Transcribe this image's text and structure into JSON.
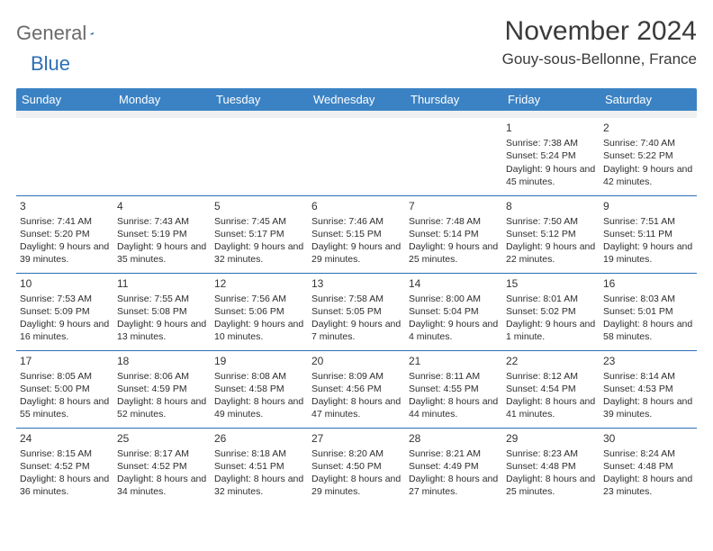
{
  "logo": {
    "word1": "General",
    "word2": "Blue"
  },
  "title": "November 2024",
  "location": "Gouy-sous-Bellonne, France",
  "colors": {
    "header_bg": "#3b82c4",
    "header_text": "#ffffff",
    "cell_border": "#2b6fb5",
    "spacer_bg": "#eef0f1",
    "text": "#2d2d2d",
    "logo_gray": "#6a6a6a",
    "logo_blue": "#2b6fb5"
  },
  "typography": {
    "title_fontsize": 30,
    "location_fontsize": 17,
    "weekday_fontsize": 13,
    "daynum_fontsize": 12,
    "body_fontsize": 10.5
  },
  "weekdays": [
    "Sunday",
    "Monday",
    "Tuesday",
    "Wednesday",
    "Thursday",
    "Friday",
    "Saturday"
  ],
  "weeks": [
    [
      null,
      null,
      null,
      null,
      null,
      {
        "n": "1",
        "sunrise": "7:38 AM",
        "sunset": "5:24 PM",
        "daylight": "9 hours and 45 minutes."
      },
      {
        "n": "2",
        "sunrise": "7:40 AM",
        "sunset": "5:22 PM",
        "daylight": "9 hours and 42 minutes."
      }
    ],
    [
      {
        "n": "3",
        "sunrise": "7:41 AM",
        "sunset": "5:20 PM",
        "daylight": "9 hours and 39 minutes."
      },
      {
        "n": "4",
        "sunrise": "7:43 AM",
        "sunset": "5:19 PM",
        "daylight": "9 hours and 35 minutes."
      },
      {
        "n": "5",
        "sunrise": "7:45 AM",
        "sunset": "5:17 PM",
        "daylight": "9 hours and 32 minutes."
      },
      {
        "n": "6",
        "sunrise": "7:46 AM",
        "sunset": "5:15 PM",
        "daylight": "9 hours and 29 minutes."
      },
      {
        "n": "7",
        "sunrise": "7:48 AM",
        "sunset": "5:14 PM",
        "daylight": "9 hours and 25 minutes."
      },
      {
        "n": "8",
        "sunrise": "7:50 AM",
        "sunset": "5:12 PM",
        "daylight": "9 hours and 22 minutes."
      },
      {
        "n": "9",
        "sunrise": "7:51 AM",
        "sunset": "5:11 PM",
        "daylight": "9 hours and 19 minutes."
      }
    ],
    [
      {
        "n": "10",
        "sunrise": "7:53 AM",
        "sunset": "5:09 PM",
        "daylight": "9 hours and 16 minutes."
      },
      {
        "n": "11",
        "sunrise": "7:55 AM",
        "sunset": "5:08 PM",
        "daylight": "9 hours and 13 minutes."
      },
      {
        "n": "12",
        "sunrise": "7:56 AM",
        "sunset": "5:06 PM",
        "daylight": "9 hours and 10 minutes."
      },
      {
        "n": "13",
        "sunrise": "7:58 AM",
        "sunset": "5:05 PM",
        "daylight": "9 hours and 7 minutes."
      },
      {
        "n": "14",
        "sunrise": "8:00 AM",
        "sunset": "5:04 PM",
        "daylight": "9 hours and 4 minutes."
      },
      {
        "n": "15",
        "sunrise": "8:01 AM",
        "sunset": "5:02 PM",
        "daylight": "9 hours and 1 minute."
      },
      {
        "n": "16",
        "sunrise": "8:03 AM",
        "sunset": "5:01 PM",
        "daylight": "8 hours and 58 minutes."
      }
    ],
    [
      {
        "n": "17",
        "sunrise": "8:05 AM",
        "sunset": "5:00 PM",
        "daylight": "8 hours and 55 minutes."
      },
      {
        "n": "18",
        "sunrise": "8:06 AM",
        "sunset": "4:59 PM",
        "daylight": "8 hours and 52 minutes."
      },
      {
        "n": "19",
        "sunrise": "8:08 AM",
        "sunset": "4:58 PM",
        "daylight": "8 hours and 49 minutes."
      },
      {
        "n": "20",
        "sunrise": "8:09 AM",
        "sunset": "4:56 PM",
        "daylight": "8 hours and 47 minutes."
      },
      {
        "n": "21",
        "sunrise": "8:11 AM",
        "sunset": "4:55 PM",
        "daylight": "8 hours and 44 minutes."
      },
      {
        "n": "22",
        "sunrise": "8:12 AM",
        "sunset": "4:54 PM",
        "daylight": "8 hours and 41 minutes."
      },
      {
        "n": "23",
        "sunrise": "8:14 AM",
        "sunset": "4:53 PM",
        "daylight": "8 hours and 39 minutes."
      }
    ],
    [
      {
        "n": "24",
        "sunrise": "8:15 AM",
        "sunset": "4:52 PM",
        "daylight": "8 hours and 36 minutes."
      },
      {
        "n": "25",
        "sunrise": "8:17 AM",
        "sunset": "4:52 PM",
        "daylight": "8 hours and 34 minutes."
      },
      {
        "n": "26",
        "sunrise": "8:18 AM",
        "sunset": "4:51 PM",
        "daylight": "8 hours and 32 minutes."
      },
      {
        "n": "27",
        "sunrise": "8:20 AM",
        "sunset": "4:50 PM",
        "daylight": "8 hours and 29 minutes."
      },
      {
        "n": "28",
        "sunrise": "8:21 AM",
        "sunset": "4:49 PM",
        "daylight": "8 hours and 27 minutes."
      },
      {
        "n": "29",
        "sunrise": "8:23 AM",
        "sunset": "4:48 PM",
        "daylight": "8 hours and 25 minutes."
      },
      {
        "n": "30",
        "sunrise": "8:24 AM",
        "sunset": "4:48 PM",
        "daylight": "8 hours and 23 minutes."
      }
    ]
  ],
  "labels": {
    "sunrise": "Sunrise:",
    "sunset": "Sunset:",
    "daylight": "Daylight:"
  }
}
